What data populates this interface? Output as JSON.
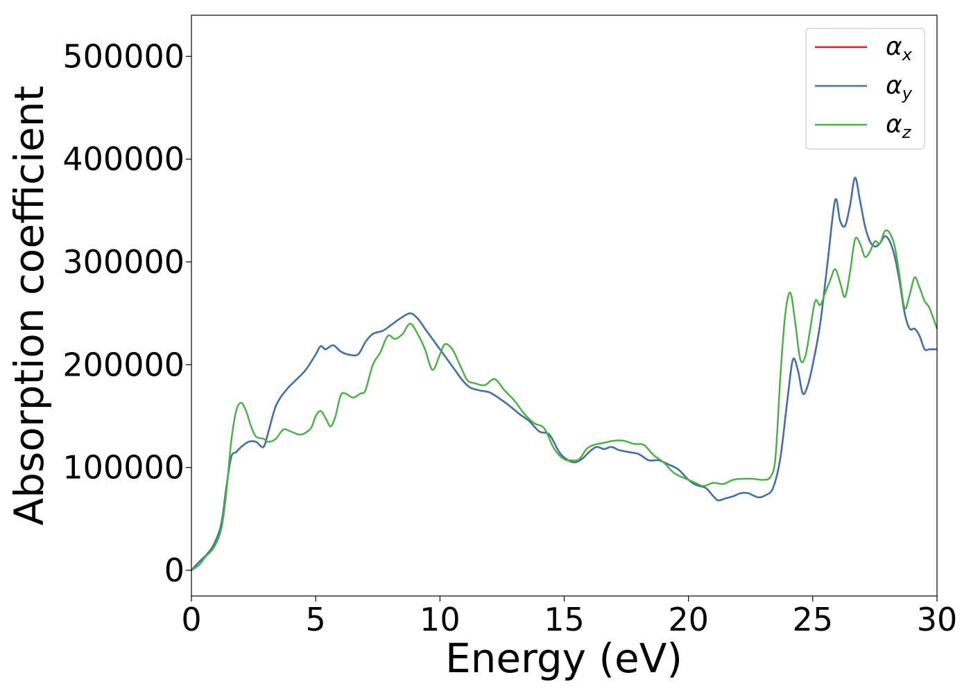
{
  "chart_data": {
    "type": "line",
    "xlabel": "Energy (eV)",
    "ylabel": "Absorption coefficient",
    "xlim": [
      0,
      30
    ],
    "ylim": [
      -25000,
      540000
    ],
    "xticks": [
      0,
      5,
      10,
      15,
      20,
      25,
      30
    ],
    "yticks": [
      0,
      100000,
      200000,
      300000,
      400000,
      500000
    ],
    "grid": false,
    "legend_position": "top-right",
    "series": [
      {
        "name": "αx",
        "legend_base": "α",
        "legend_sub": "x",
        "color": "#e41a1c",
        "x": [
          0,
          0.3,
          0.6,
          0.9,
          1.2,
          1.4,
          1.6,
          1.8,
          2.0,
          2.3,
          2.6,
          2.9,
          3.1,
          3.4,
          3.8,
          4.2,
          4.6,
          5.0,
          5.2,
          5.4,
          5.7,
          6.0,
          6.3,
          6.7,
          7.0,
          7.3,
          7.7,
          8.0,
          8.4,
          8.8,
          9.1,
          9.4,
          9.7,
          10.0,
          10.3,
          10.6,
          10.9,
          11.2,
          11.6,
          12.0,
          12.4,
          12.8,
          13.2,
          13.6,
          14.0,
          14.4,
          14.8,
          15.1,
          15.4,
          15.7,
          16.0,
          16.3,
          16.6,
          16.9,
          17.2,
          17.6,
          18.0,
          18.4,
          18.8,
          19.2,
          19.6,
          20.0,
          20.3,
          20.7,
          21.0,
          21.2,
          21.5,
          21.8,
          22.1,
          22.4,
          22.8,
          23.1,
          23.4,
          23.7,
          24.0,
          24.2,
          24.4,
          24.6,
          24.8,
          25.0,
          25.3,
          25.6,
          25.9,
          26.1,
          26.3,
          26.5,
          26.7,
          26.9,
          27.1,
          27.3,
          27.5,
          27.7,
          27.9,
          28.1,
          28.3,
          28.5,
          28.7,
          28.9,
          29.1,
          29.3,
          29.5,
          29.7,
          30.0
        ],
        "y": [
          0,
          8000,
          15000,
          25000,
          45000,
          80000,
          110000,
          115000,
          120000,
          125000,
          125000,
          120000,
          135000,
          160000,
          175000,
          185000,
          195000,
          210000,
          218000,
          215000,
          219000,
          213000,
          210000,
          210000,
          222000,
          230000,
          233000,
          238000,
          245000,
          250000,
          245000,
          235000,
          225000,
          215000,
          205000,
          195000,
          185000,
          178000,
          175000,
          173000,
          167000,
          160000,
          152000,
          145000,
          135000,
          132000,
          115000,
          108000,
          105000,
          108000,
          115000,
          120000,
          118000,
          120000,
          117000,
          115000,
          113000,
          107000,
          107000,
          103000,
          98000,
          88000,
          83000,
          80000,
          72000,
          68000,
          70000,
          72000,
          75000,
          75000,
          71000,
          73000,
          80000,
          110000,
          170000,
          205000,
          195000,
          172000,
          180000,
          200000,
          240000,
          300000,
          360000,
          340000,
          335000,
          355000,
          382000,
          360000,
          335000,
          320000,
          315000,
          318000,
          325000,
          320000,
          305000,
          280000,
          250000,
          235000,
          235000,
          228000,
          215000,
          215000,
          215000
        ]
      },
      {
        "name": "αy",
        "legend_base": "α",
        "legend_sub": "y",
        "color": "#3e74a6",
        "x": [
          0,
          0.3,
          0.6,
          0.9,
          1.2,
          1.4,
          1.6,
          1.8,
          2.0,
          2.3,
          2.6,
          2.9,
          3.1,
          3.4,
          3.8,
          4.2,
          4.6,
          5.0,
          5.2,
          5.4,
          5.7,
          6.0,
          6.3,
          6.7,
          7.0,
          7.3,
          7.7,
          8.0,
          8.4,
          8.8,
          9.1,
          9.4,
          9.7,
          10.0,
          10.3,
          10.6,
          10.9,
          11.2,
          11.6,
          12.0,
          12.4,
          12.8,
          13.2,
          13.6,
          14.0,
          14.4,
          14.8,
          15.1,
          15.4,
          15.7,
          16.0,
          16.3,
          16.6,
          16.9,
          17.2,
          17.6,
          18.0,
          18.4,
          18.8,
          19.2,
          19.6,
          20.0,
          20.3,
          20.7,
          21.0,
          21.2,
          21.5,
          21.8,
          22.1,
          22.4,
          22.8,
          23.1,
          23.4,
          23.7,
          24.0,
          24.2,
          24.4,
          24.6,
          24.8,
          25.0,
          25.3,
          25.6,
          25.9,
          26.1,
          26.3,
          26.5,
          26.7,
          26.9,
          27.1,
          27.3,
          27.5,
          27.7,
          27.9,
          28.1,
          28.3,
          28.5,
          28.7,
          28.9,
          29.1,
          29.3,
          29.5,
          29.7,
          30.0
        ],
        "y": [
          0,
          8000,
          15000,
          25000,
          45000,
          80000,
          110000,
          115000,
          120000,
          125000,
          125000,
          120000,
          135000,
          160000,
          175000,
          185000,
          195000,
          210000,
          218000,
          215000,
          219000,
          213000,
          210000,
          210000,
          222000,
          230000,
          233000,
          238000,
          245000,
          250000,
          245000,
          235000,
          225000,
          215000,
          205000,
          195000,
          185000,
          178000,
          175000,
          173000,
          167000,
          160000,
          152000,
          145000,
          135000,
          132000,
          115000,
          108000,
          105000,
          108000,
          115000,
          120000,
          118000,
          120000,
          117000,
          115000,
          113000,
          107000,
          107000,
          103000,
          98000,
          88000,
          83000,
          80000,
          72000,
          68000,
          70000,
          72000,
          75000,
          75000,
          71000,
          73000,
          80000,
          110000,
          170000,
          205000,
          195000,
          172000,
          180000,
          200000,
          240000,
          300000,
          360000,
          340000,
          335000,
          355000,
          382000,
          360000,
          335000,
          320000,
          315000,
          318000,
          325000,
          320000,
          305000,
          280000,
          250000,
          235000,
          235000,
          228000,
          215000,
          215000,
          215000
        ]
      },
      {
        "name": "αz",
        "legend_base": "α",
        "legend_sub": "z",
        "color": "#4daf4a",
        "x": [
          0,
          0.3,
          0.6,
          0.9,
          1.2,
          1.4,
          1.6,
          1.8,
          2.0,
          2.2,
          2.4,
          2.6,
          2.9,
          3.1,
          3.4,
          3.7,
          4.0,
          4.4,
          4.8,
          5.0,
          5.2,
          5.4,
          5.6,
          5.8,
          6.0,
          6.2,
          6.5,
          6.8,
          7.0,
          7.3,
          7.6,
          7.9,
          8.2,
          8.5,
          8.8,
          9.1,
          9.4,
          9.7,
          10.0,
          10.2,
          10.5,
          10.8,
          11.1,
          11.4,
          11.8,
          12.2,
          12.6,
          13.0,
          13.4,
          13.8,
          14.2,
          14.6,
          15.0,
          15.3,
          15.6,
          15.9,
          16.2,
          16.6,
          17.0,
          17.4,
          17.8,
          18.2,
          18.6,
          19.0,
          19.4,
          19.8,
          20.2,
          20.6,
          21.0,
          21.4,
          21.8,
          22.2,
          22.6,
          23.0,
          23.3,
          23.5,
          23.7,
          23.9,
          24.1,
          24.3,
          24.5,
          24.7,
          24.9,
          25.1,
          25.3,
          25.5,
          25.7,
          25.9,
          26.1,
          26.3,
          26.5,
          26.7,
          26.9,
          27.1,
          27.3,
          27.5,
          27.7,
          27.9,
          28.1,
          28.3,
          28.5,
          28.7,
          28.9,
          29.1,
          29.3,
          29.5,
          29.7,
          30.0
        ],
        "y": [
          0,
          5000,
          14000,
          22000,
          40000,
          75000,
          125000,
          155000,
          163000,
          155000,
          140000,
          130000,
          128000,
          125000,
          128000,
          137000,
          135000,
          132000,
          138000,
          150000,
          155000,
          148000,
          140000,
          150000,
          170000,
          172000,
          168000,
          172000,
          175000,
          200000,
          212000,
          228000,
          225000,
          230000,
          240000,
          230000,
          215000,
          195000,
          210000,
          220000,
          215000,
          200000,
          185000,
          182000,
          180000,
          186000,
          175000,
          165000,
          152000,
          143000,
          138000,
          118000,
          108000,
          107000,
          108000,
          118000,
          122000,
          124000,
          126000,
          126000,
          123000,
          122000,
          112000,
          105000,
          95000,
          90000,
          86000,
          82000,
          85000,
          84000,
          88000,
          89000,
          89000,
          88000,
          91000,
          110000,
          190000,
          250000,
          270000,
          240000,
          205000,
          208000,
          235000,
          262000,
          258000,
          270000,
          282000,
          293000,
          280000,
          266000,
          290000,
          322000,
          318000,
          305000,
          310000,
          320000,
          318000,
          330000,
          328000,
          315000,
          285000,
          255000,
          268000,
          285000,
          275000,
          262000,
          255000,
          235000
        ]
      }
    ]
  }
}
